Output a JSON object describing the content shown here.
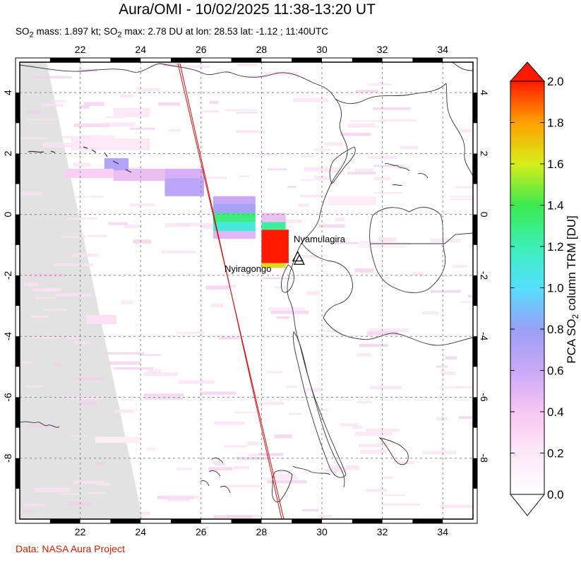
{
  "title": "Aura/OMI - 10/02/2025 11:38-13:20 UT",
  "subtitle_html": "SO<sub>2</sub> mass: 1.897 kt; SO<sub>2</sub> max: 2.78 DU at lon: 28.53 lat: -1.12 ; 11:40UTC",
  "credit": "Data: NASA Aura Project",
  "colors": {
    "frame": "#000000",
    "grid": "#888888",
    "coast": "#333333",
    "track": "#cc1111",
    "credit": "#cc2200"
  },
  "chart_data": {
    "type": "heatmap",
    "title": "Aura/OMI - 10/02/2025 11:38-13:20 UT",
    "xlim": [
      20,
      35
    ],
    "ylim": [
      -10,
      5
    ],
    "x_ticks": [
      22,
      24,
      26,
      28,
      30,
      32,
      34
    ],
    "x_tick_labels": [
      "22",
      "24",
      "26",
      "28",
      "30",
      "32",
      "34"
    ],
    "y_ticks": [
      4,
      2,
      0,
      -2,
      -4,
      -6,
      -8
    ],
    "y_tick_labels": [
      "4",
      "2",
      "0",
      "-2",
      "-4",
      "-6",
      "-8"
    ],
    "grid": true,
    "colorbar": {
      "label": "PCA SO2 column TRM [DU]",
      "min": 0.0,
      "max": 2.0,
      "ticks": [
        0.0,
        0.2,
        0.4,
        0.6,
        0.8,
        1.0,
        1.2,
        1.4,
        1.6,
        1.8,
        2.0
      ],
      "tick_labels": [
        "0.0",
        "0.2",
        "0.4",
        "0.6",
        "0.8",
        "1.0",
        "1.2",
        "1.4",
        "1.6",
        "1.8",
        "2.0"
      ]
    },
    "volcanoes": [
      {
        "name": "Nyamulagira",
        "lon": 29.2,
        "lat": -1.41
      },
      {
        "name": "Nyiragongo",
        "lon": 29.25,
        "lat": -1.52
      }
    ],
    "so2_mass_kt": 1.897,
    "so2_max_du": 2.78,
    "so2_max_lon": 28.53,
    "so2_max_lat": -1.12,
    "so2_max_time": "11:40UTC",
    "plume_cells": [
      {
        "lon0": 28.0,
        "lon1": 28.9,
        "lat0": -1.6,
        "lat1": -0.5,
        "du": 2.0
      },
      {
        "lon0": 28.0,
        "lon1": 28.8,
        "lat0": -1.75,
        "lat1": -1.6,
        "du": 1.65
      },
      {
        "lon0": 28.0,
        "lon1": 28.8,
        "lat0": -0.5,
        "lat1": -0.25,
        "du": 1.25
      },
      {
        "lon0": 28.0,
        "lon1": 28.8,
        "lat0": -0.25,
        "lat1": 0.05,
        "du": 0.45
      },
      {
        "lon0": 26.4,
        "lon1": 27.8,
        "lat0": -0.55,
        "lat1": -0.25,
        "du": 1.1
      },
      {
        "lon0": 26.4,
        "lon1": 27.8,
        "lat0": -0.25,
        "lat1": 0.05,
        "du": 1.3
      },
      {
        "lon0": 26.4,
        "lon1": 27.8,
        "lat0": 0.05,
        "lat1": 0.35,
        "du": 0.75
      },
      {
        "lon0": 26.4,
        "lon1": 27.8,
        "lat0": 0.35,
        "lat1": 0.6,
        "du": 0.6
      },
      {
        "lon0": 26.4,
        "lon1": 27.8,
        "lat0": -0.8,
        "lat1": -0.55,
        "du": 0.5
      },
      {
        "lon0": 24.8,
        "lon1": 26.1,
        "lat0": 0.6,
        "lat1": 1.2,
        "du": 0.65
      },
      {
        "lon0": 24.8,
        "lon1": 26.1,
        "lat0": 1.2,
        "lat1": 1.5,
        "du": 0.55
      },
      {
        "lon0": 23.1,
        "lon1": 24.8,
        "lat0": 1.1,
        "lat1": 1.5,
        "du": 0.45
      },
      {
        "lon0": 22.8,
        "lon1": 23.6,
        "lat0": 1.45,
        "lat1": 1.85,
        "du": 0.7
      },
      {
        "lon0": 21.5,
        "lon1": 23.1,
        "lat0": 1.2,
        "lat1": 1.5,
        "du": 0.35
      },
      {
        "lon0": 21.7,
        "lon1": 24.3,
        "lat0": 2.1,
        "lat1": 2.5,
        "du": 0.2
      },
      {
        "lon0": 23.1,
        "lon1": 24.3,
        "lat0": 3.2,
        "lat1": 3.5,
        "du": 0.2
      },
      {
        "lon0": 22.2,
        "lon1": 23.2,
        "lat0": -3.6,
        "lat1": -3.3,
        "du": 0.25
      },
      {
        "lon0": 22.5,
        "lon1": 24.0,
        "lat0": -7.5,
        "lat1": -7.3,
        "du": 0.15
      },
      {
        "lon0": 30.2,
        "lon1": 31.8,
        "lat0": 0.3,
        "lat1": 0.6,
        "du": 0.15
      },
      {
        "lon0": 31.2,
        "lon1": 32.8,
        "lat0": -1.1,
        "lat1": -0.9,
        "du": 0.12
      }
    ]
  }
}
